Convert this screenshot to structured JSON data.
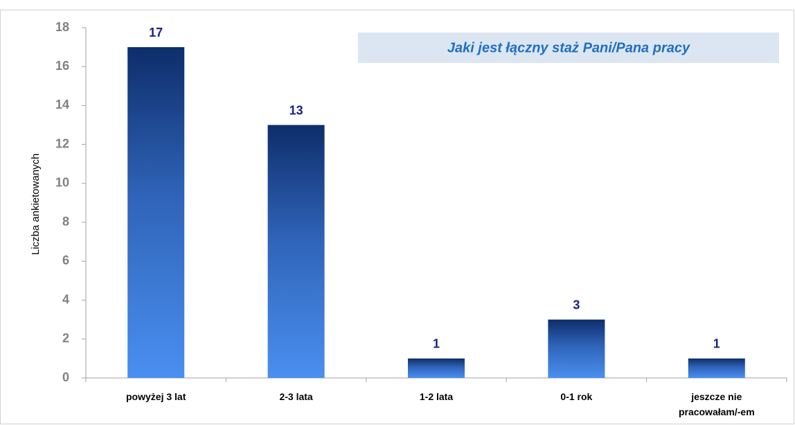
{
  "chart_data": {
    "type": "bar",
    "title": "Jaki jest łączny staż Pani/Pana pracy",
    "y_label": "Liczba ankietowanych",
    "categories": [
      "powyżej 3 lat",
      "2-3 lata",
      "1-2 lata",
      "0-1 rok",
      "jeszcze nie pracowałam/-em"
    ],
    "values": [
      17,
      13,
      1,
      3,
      1
    ],
    "color": "#4a8ff0",
    "ylim": [
      0,
      18
    ],
    "yticks": [
      0,
      2,
      4,
      6,
      8,
      10,
      12,
      14,
      16,
      18
    ],
    "grid": false
  }
}
